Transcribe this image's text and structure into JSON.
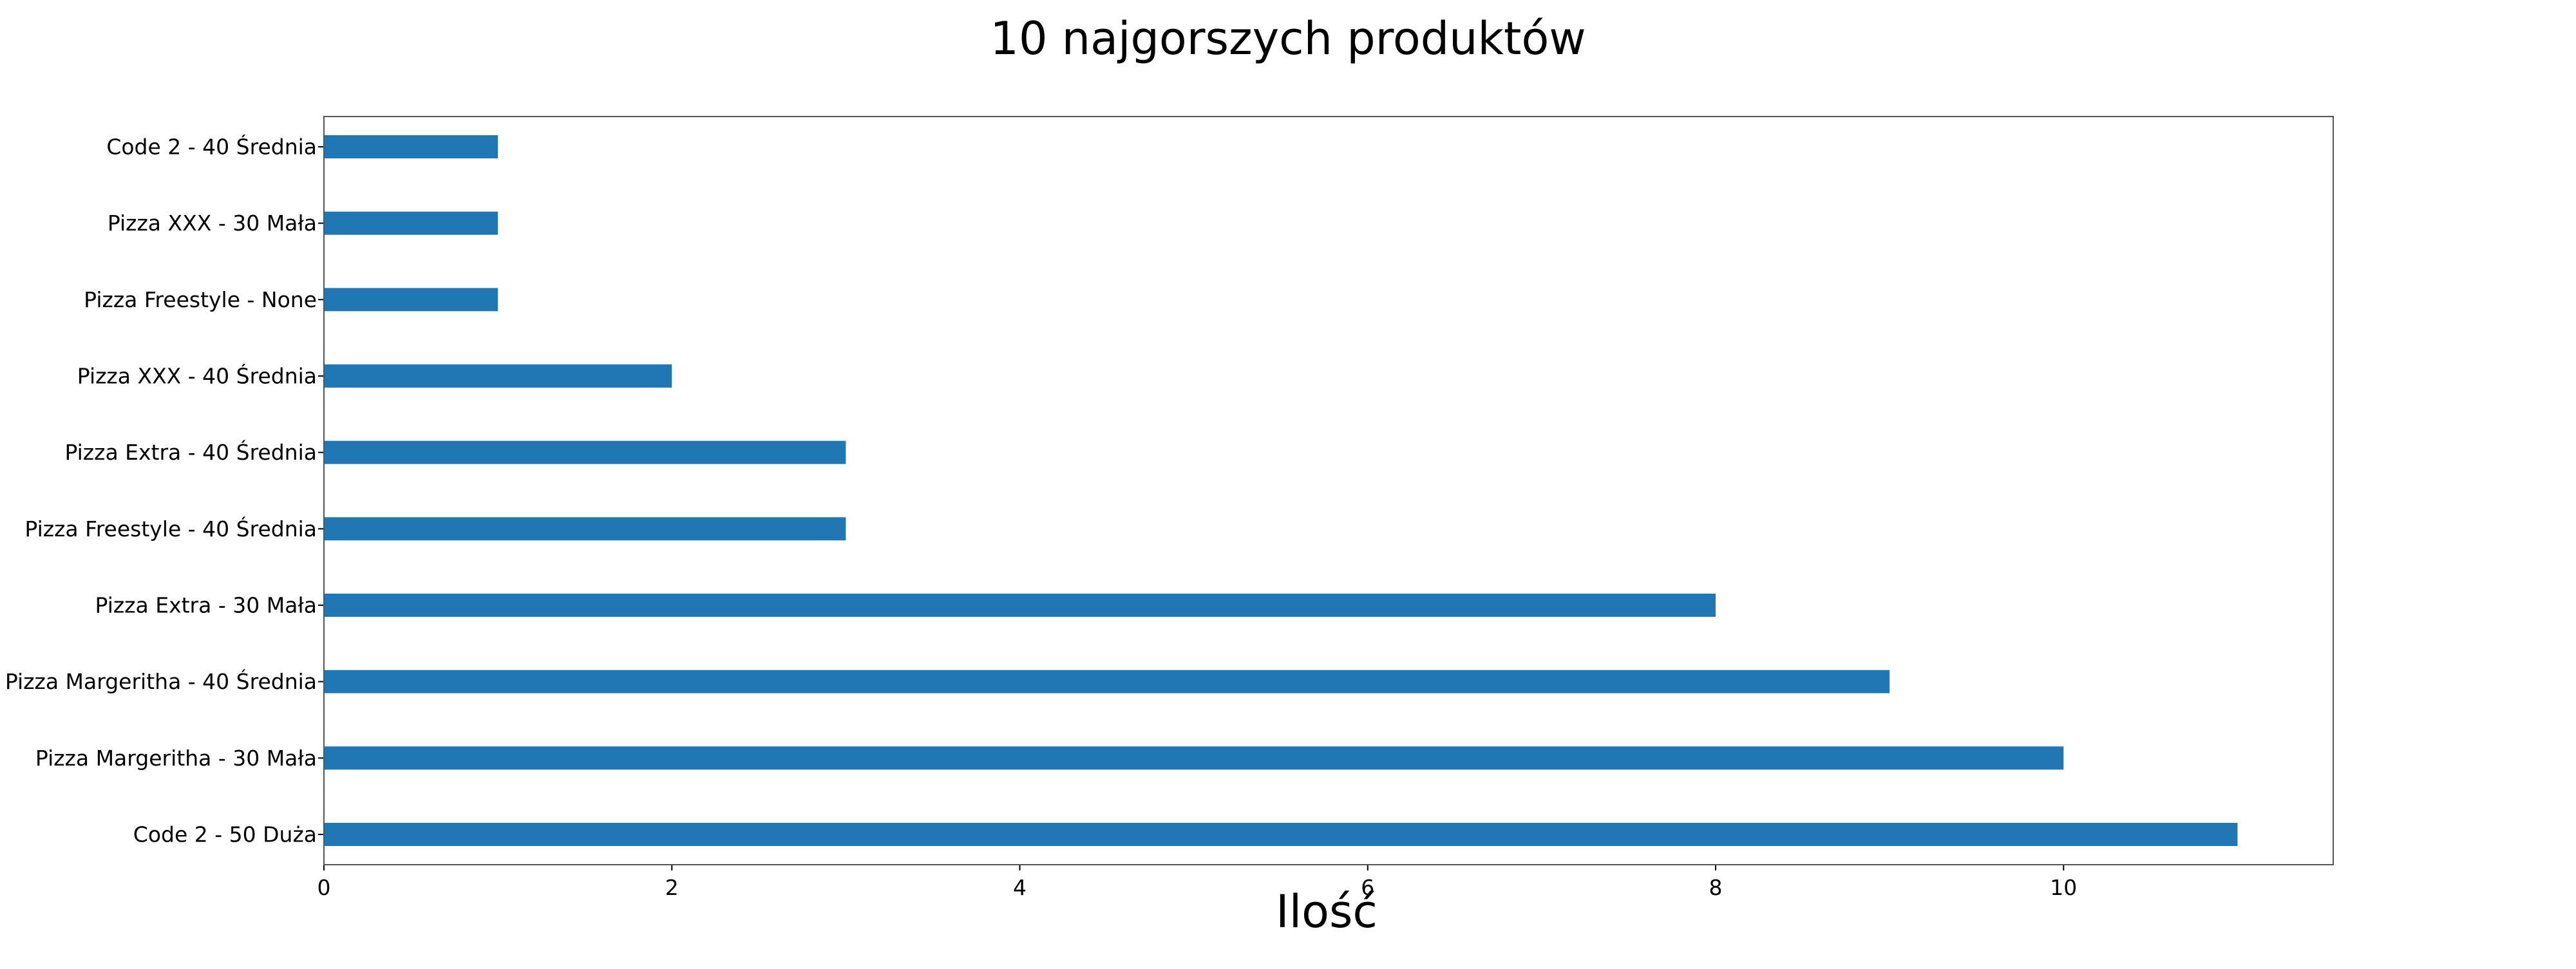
{
  "chart_data": {
    "type": "bar",
    "orientation": "horizontal",
    "title": "10 najgorszych produktów",
    "xlabel": "Ilość",
    "ylabel": "",
    "categories": [
      "Code 2 - 50 Duża",
      "Pizza Margeritha - 30 Mała",
      "Pizza Margeritha - 40 Średnia",
      "Pizza Extra - 30 Mała",
      "Pizza Freestyle - 40 Średnia",
      "Pizza Extra - 40 Średnia",
      "Pizza XXX - 40 Średnia",
      "Pizza Freestyle - None",
      "Pizza XXX - 30 Mała",
      "Code 2 - 40 Średnia"
    ],
    "values": [
      11,
      10,
      9,
      8,
      3,
      3,
      2,
      1,
      1,
      1
    ],
    "xlim": [
      0,
      11.55
    ],
    "xticks": [
      0,
      2,
      4,
      6,
      8,
      10
    ],
    "grid": false,
    "legend": "none",
    "bar_color": "#2077b4"
  }
}
